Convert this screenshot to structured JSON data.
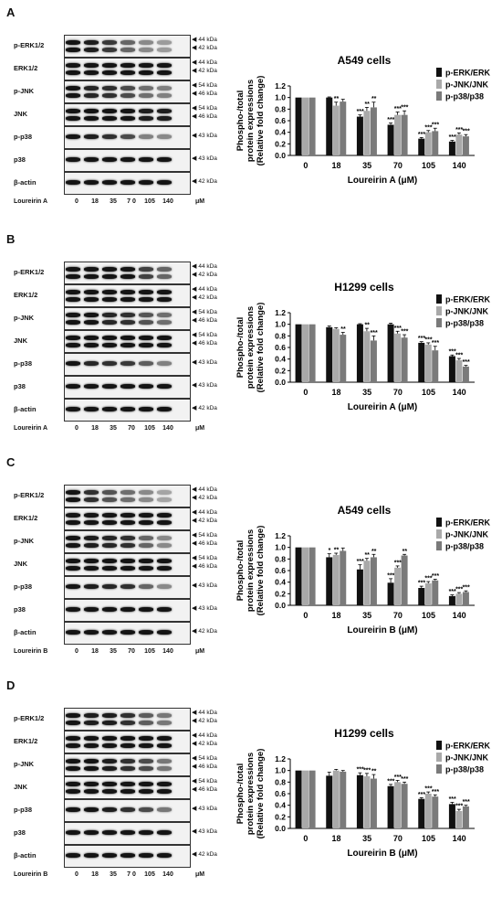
{
  "panels": [
    {
      "letter": "A",
      "rows": [
        {
          "label": "p-ERK1/2",
          "markers": [
            "44 kDa",
            "42 kDa"
          ],
          "bands": 2,
          "trend": [
            1,
            0.95,
            0.8,
            0.55,
            0.35,
            0.25
          ]
        },
        {
          "label": "ERK1/2",
          "markers": [
            "44 kDa",
            "42 kDa"
          ],
          "bands": 2,
          "trend": [
            1,
            1,
            1,
            1,
            1,
            1
          ]
        },
        {
          "label": "p-JNK",
          "markers": [
            "54 kDa",
            "46 kDa"
          ],
          "bands": 2,
          "trend": [
            1,
            0.9,
            0.85,
            0.7,
            0.5,
            0.4
          ]
        },
        {
          "label": "JNK",
          "markers": [
            "54 kDa",
            "46 kDa"
          ],
          "bands": 2,
          "trend": [
            1,
            1,
            1,
            1,
            0.95,
            0.95
          ]
        },
        {
          "label": "p-p38",
          "markers": [
            "43 kDa"
          ],
          "bands": 1,
          "trend": [
            1,
            0.95,
            0.85,
            0.7,
            0.4,
            0.35
          ]
        },
        {
          "label": "p38",
          "markers": [
            "43 kDa"
          ],
          "bands": 1,
          "trend": [
            1,
            1,
            1,
            1,
            1,
            1
          ]
        },
        {
          "label": "β-actin",
          "markers": [
            "42 kDa"
          ],
          "bands": 1,
          "trend": [
            1,
            1,
            1,
            1,
            1,
            1
          ]
        }
      ],
      "treatment": "Loureirin A",
      "lanes": [
        "0",
        "18",
        "35",
        "7 0",
        "105",
        "140"
      ],
      "unit": "μM",
      "chart_data": {
        "type": "bar",
        "title": "A549 cells",
        "ylabel_line1": "Phospho-/total",
        "ylabel_line2": "protein expressions",
        "ylabel_line3": "(Relative fold change)",
        "xlabel": "Loureirin A (μM)",
        "categories": [
          "0",
          "18",
          "35",
          "70",
          "105",
          "140"
        ],
        "ylim": [
          0,
          1.2
        ],
        "yticks": [
          "0.0",
          "0.2",
          "0.4",
          "0.6",
          "0.8",
          "1.0",
          "1.2"
        ],
        "series": [
          {
            "name": "p-ERK/ERK",
            "color": "#111111",
            "values": [
              1.0,
              1.0,
              0.67,
              0.53,
              0.29,
              0.24
            ],
            "errors": [
              0.0,
              0.01,
              0.03,
              0.03,
              0.02,
              0.02
            ],
            "stars": [
              "",
              "",
              "***",
              "***",
              "***",
              "***"
            ]
          },
          {
            "name": "p-JNK/JNK",
            "color": "#a9a9a9",
            "values": [
              1.0,
              0.86,
              0.77,
              0.7,
              0.4,
              0.36
            ],
            "errors": [
              0.0,
              0.06,
              0.06,
              0.05,
              0.03,
              0.03
            ],
            "stars": [
              "",
              "**",
              "**",
              "***",
              "***",
              "***"
            ]
          },
          {
            "name": "p-p38/p38",
            "color": "#7a7a7a",
            "values": [
              1.0,
              0.93,
              0.83,
              0.7,
              0.42,
              0.33
            ],
            "errors": [
              0.0,
              0.04,
              0.09,
              0.07,
              0.05,
              0.03
            ],
            "stars": [
              "",
              "",
              "**",
              "***",
              "***",
              "***"
            ]
          }
        ]
      }
    },
    {
      "letter": "B",
      "rows": [
        {
          "label": "p-ERK1/2",
          "markers": [
            "44 kDa",
            "42 kDa"
          ],
          "bands": 2,
          "trend": [
            1,
            1,
            1,
            1,
            0.75,
            0.55
          ]
        },
        {
          "label": "ERK1/2",
          "markers": [
            "44 kDa",
            "42 kDa"
          ],
          "bands": 2,
          "trend": [
            1,
            1,
            1,
            1,
            1,
            1
          ]
        },
        {
          "label": "p-JNK",
          "markers": [
            "54 kDa",
            "46 kDa"
          ],
          "bands": 2,
          "trend": [
            1,
            1,
            0.9,
            0.85,
            0.65,
            0.5
          ]
        },
        {
          "label": "JNK",
          "markers": [
            "54 kDa",
            "46 kDa"
          ],
          "bands": 2,
          "trend": [
            1,
            1,
            1,
            1,
            1,
            1
          ]
        },
        {
          "label": "p-p38",
          "markers": [
            "43 kDa"
          ],
          "bands": 1,
          "trend": [
            1,
            0.9,
            0.85,
            0.8,
            0.6,
            0.4
          ]
        },
        {
          "label": "p38",
          "markers": [
            "43 kDa"
          ],
          "bands": 1,
          "trend": [
            1,
            1,
            1,
            1,
            1,
            1
          ]
        },
        {
          "label": "β-actin",
          "markers": [
            "42 kDa"
          ],
          "bands": 1,
          "trend": [
            1,
            1,
            1,
            1,
            1,
            1
          ]
        }
      ],
      "treatment": "Loureirin A",
      "lanes": [
        "0",
        "18",
        "35",
        "70",
        "105",
        "140"
      ],
      "unit": "μM",
      "chart_data": {
        "type": "bar",
        "title": "H1299 cells",
        "ylabel_line1": "Phospho-/total",
        "ylabel_line2": "protein expressions",
        "ylabel_line3": "(Relative fold change)",
        "xlabel": "Loureirin A (μM)",
        "categories": [
          "0",
          "18",
          "35",
          "70",
          "105",
          "140"
        ],
        "ylim": [
          0,
          1.2
        ],
        "yticks": [
          "0.0",
          "0.2",
          "0.4",
          "0.6",
          "0.8",
          "1.0",
          "1.2"
        ],
        "series": [
          {
            "name": "p-ERK/ERK",
            "color": "#111111",
            "values": [
              1.0,
              0.95,
              1.0,
              1.0,
              0.68,
              0.45
            ],
            "errors": [
              0.0,
              0.02,
              0.01,
              0.02,
              0.02,
              0.02
            ],
            "stars": [
              "",
              "",
              "",
              "",
              "***",
              "***"
            ]
          },
          {
            "name": "p-JNK/JNK",
            "color": "#a9a9a9",
            "values": [
              1.0,
              0.92,
              0.88,
              0.84,
              0.65,
              0.38
            ],
            "errors": [
              0.0,
              0.02,
              0.05,
              0.04,
              0.03,
              0.03
            ],
            "stars": [
              "",
              "",
              "**",
              "***",
              "***",
              "***"
            ]
          },
          {
            "name": "p-p38/p38",
            "color": "#7a7a7a",
            "values": [
              1.0,
              0.82,
              0.72,
              0.77,
              0.55,
              0.27
            ],
            "errors": [
              0.0,
              0.04,
              0.08,
              0.05,
              0.07,
              0.02
            ],
            "stars": [
              "",
              "**",
              "***",
              "***",
              "***",
              "***"
            ]
          }
        ]
      }
    },
    {
      "letter": "C",
      "rows": [
        {
          "label": "p-ERK1/2",
          "markers": [
            "44 kDa",
            "42 kDa"
          ],
          "bands": 2,
          "trend": [
            1,
            0.85,
            0.65,
            0.5,
            0.35,
            0.2
          ]
        },
        {
          "label": "ERK1/2",
          "markers": [
            "44 kDa",
            "42 kDa"
          ],
          "bands": 2,
          "trend": [
            1,
            1,
            1,
            1,
            1,
            1
          ]
        },
        {
          "label": "p-JNK",
          "markers": [
            "54 kDa",
            "46 kDa"
          ],
          "bands": 2,
          "trend": [
            1,
            0.95,
            0.9,
            0.85,
            0.55,
            0.35
          ]
        },
        {
          "label": "JNK",
          "markers": [
            "54 kDa",
            "46 kDa"
          ],
          "bands": 2,
          "trend": [
            1,
            1,
            1,
            1,
            1,
            1
          ]
        },
        {
          "label": "p-p38",
          "markers": [
            "43 kDa"
          ],
          "bands": 1,
          "trend": [
            1,
            0.95,
            0.9,
            0.85,
            0.55,
            0.35
          ]
        },
        {
          "label": "p38",
          "markers": [
            "43 kDa"
          ],
          "bands": 1,
          "trend": [
            1,
            1,
            1,
            1,
            1,
            1
          ]
        },
        {
          "label": "β-actin",
          "markers": [
            "42 kDa"
          ],
          "bands": 1,
          "trend": [
            1,
            1,
            1,
            1,
            1,
            1
          ]
        }
      ],
      "treatment": "Loureirin B",
      "lanes": [
        "0",
        "18",
        "35",
        "70",
        "105",
        "140"
      ],
      "unit": "μM",
      "chart_data": {
        "type": "bar",
        "title": "A549 cells",
        "ylabel_line1": "Phospho-/total",
        "ylabel_line2": "protein expressions",
        "ylabel_line3": "(Relative fold change)",
        "xlabel": "Loureirin B (μM)",
        "categories": [
          "0",
          "18",
          "35",
          "70",
          "105",
          "140"
        ],
        "ylim": [
          0,
          1.2
        ],
        "yticks": [
          "0.0",
          "0.2",
          "0.4",
          "0.6",
          "0.8",
          "1.0",
          "1.2"
        ],
        "series": [
          {
            "name": "p-ERK/ERK",
            "color": "#111111",
            "values": [
              1.0,
              0.83,
              0.62,
              0.39,
              0.3,
              0.16
            ],
            "errors": [
              0.0,
              0.06,
              0.08,
              0.07,
              0.03,
              0.02
            ],
            "stars": [
              "",
              "*",
              "***",
              "***",
              "***",
              "***"
            ]
          },
          {
            "name": "p-JNK/JNK",
            "color": "#a9a9a9",
            "values": [
              1.0,
              0.87,
              0.77,
              0.65,
              0.38,
              0.2
            ],
            "errors": [
              0.0,
              0.03,
              0.04,
              0.03,
              0.03,
              0.02
            ],
            "stars": [
              "",
              "**",
              "**",
              "***",
              "***",
              "***"
            ]
          },
          {
            "name": "p-p38/p38",
            "color": "#7a7a7a",
            "values": [
              1.0,
              0.94,
              0.83,
              0.86,
              0.43,
              0.23
            ],
            "errors": [
              0.0,
              0.05,
              0.05,
              0.02,
              0.02,
              0.02
            ],
            "stars": [
              "",
              "",
              "**",
              "**",
              "***",
              "***"
            ]
          }
        ]
      }
    },
    {
      "letter": "D",
      "rows": [
        {
          "label": "p-ERK1/2",
          "markers": [
            "44 kDa",
            "42 kDa"
          ],
          "bands": 2,
          "trend": [
            1,
            0.95,
            0.95,
            0.85,
            0.6,
            0.45
          ]
        },
        {
          "label": "ERK1/2",
          "markers": [
            "44 kDa",
            "42 kDa"
          ],
          "bands": 2,
          "trend": [
            1,
            1,
            1,
            1,
            1,
            1
          ]
        },
        {
          "label": "p-JNK",
          "markers": [
            "54 kDa",
            "46 kDa"
          ],
          "bands": 2,
          "trend": [
            1,
            1,
            0.95,
            0.85,
            0.7,
            0.45
          ]
        },
        {
          "label": "JNK",
          "markers": [
            "54 kDa",
            "46 kDa"
          ],
          "bands": 2,
          "trend": [
            1,
            1,
            1,
            1,
            1,
            1
          ]
        },
        {
          "label": "p-p38",
          "markers": [
            "43 kDa"
          ],
          "bands": 1,
          "trend": [
            1,
            1,
            0.95,
            0.85,
            0.7,
            0.45
          ]
        },
        {
          "label": "p38",
          "markers": [
            "43 kDa"
          ],
          "bands": 1,
          "trend": [
            1,
            1,
            1,
            1,
            1,
            1
          ]
        },
        {
          "label": "β-actin",
          "markers": [
            "42 kDa"
          ],
          "bands": 1,
          "trend": [
            1,
            1,
            1,
            1,
            1,
            1
          ]
        }
      ],
      "treatment": "Loureirin B",
      "lanes": [
        "0",
        "18",
        "35",
        "7 0",
        "105",
        "140"
      ],
      "unit": "μM",
      "chart_data": {
        "type": "bar",
        "title": "H1299 cells",
        "ylabel_line1": "Phospho-/total",
        "ylabel_line2": "protein expressions",
        "ylabel_line3": "(Relative fold change)",
        "xlabel": "Loureirin B (μM)",
        "categories": [
          "0",
          "18",
          "35",
          "70",
          "105",
          "140"
        ],
        "ylim": [
          0,
          1.2
        ],
        "yticks": [
          "0.0",
          "0.2",
          "0.4",
          "0.6",
          "0.8",
          "1.0",
          "1.2"
        ],
        "series": [
          {
            "name": "p-ERK/ERK",
            "color": "#111111",
            "values": [
              1.0,
              0.91,
              0.92,
              0.73,
              0.51,
              0.42
            ],
            "errors": [
              0.0,
              0.06,
              0.04,
              0.03,
              0.02,
              0.03
            ],
            "stars": [
              "",
              "",
              "***",
              "***",
              "***",
              "***"
            ]
          },
          {
            "name": "p-JNK/JNK",
            "color": "#a9a9a9",
            "values": [
              1.0,
              1.0,
              0.9,
              0.8,
              0.6,
              0.3
            ],
            "errors": [
              0.0,
              0.02,
              0.05,
              0.03,
              0.03,
              0.03
            ],
            "stars": [
              "",
              "",
              "***",
              "***",
              "***",
              "***"
            ]
          },
          {
            "name": "p-p38/p38",
            "color": "#7a7a7a",
            "values": [
              1.0,
              0.98,
              0.86,
              0.77,
              0.55,
              0.38
            ],
            "errors": [
              0.0,
              0.02,
              0.07,
              0.03,
              0.03,
              0.02
            ],
            "stars": [
              "",
              "",
              "**",
              "***",
              "***",
              "***"
            ]
          }
        ]
      }
    }
  ]
}
